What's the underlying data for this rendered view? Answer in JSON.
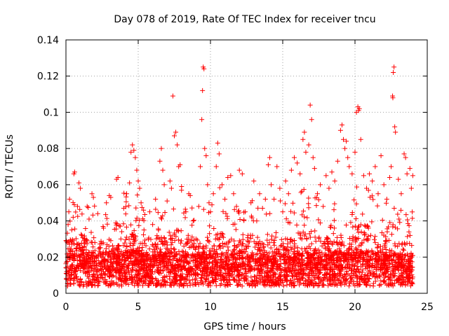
{
  "chart_data": {
    "type": "scatter",
    "title": "Day 078 of 2019, Rate Of TEC Index for receiver tncu",
    "xlabel": "GPS time / hours",
    "ylabel": "ROTI / TECUs",
    "xlim": [
      0,
      25
    ],
    "ylim": [
      0,
      0.14
    ],
    "xticks": [
      0,
      5,
      10,
      15,
      20,
      25
    ],
    "xtick_labels": [
      "0",
      "5",
      "10",
      "15",
      "20",
      "25"
    ],
    "yticks": [
      0,
      0.02,
      0.04,
      0.06,
      0.08,
      0.1,
      0.12,
      0.14
    ],
    "ytick_labels": [
      "0",
      "0.02",
      "0.04",
      "0.06",
      "0.08",
      "0.1",
      "0.12",
      "0.14"
    ],
    "grid": true,
    "marker": "+",
    "color": "#ff0000",
    "series": [
      {
        "name": "ROTI",
        "points": [
          [
            0.05,
            0.012
          ],
          [
            0.1,
            0.028
          ],
          [
            0.15,
            0.038
          ],
          [
            0.2,
            0.045
          ],
          [
            0.25,
            0.052
          ],
          [
            0.3,
            0.02
          ],
          [
            0.35,
            0.01
          ],
          [
            0.4,
            0.035
          ],
          [
            0.45,
            0.015
          ],
          [
            0.5,
            0.042
          ],
          [
            0.55,
            0.066
          ],
          [
            0.6,
            0.067
          ],
          [
            0.7,
            0.025
          ],
          [
            0.8,
            0.048
          ],
          [
            0.9,
            0.061
          ],
          [
            1.0,
            0.058
          ],
          [
            1.1,
            0.032
          ],
          [
            1.2,
            0.018
          ],
          [
            1.3,
            0.03
          ],
          [
            1.4,
            0.022
          ],
          [
            1.6,
            0.041
          ],
          [
            1.8,
            0.055
          ],
          [
            1.9,
            0.053
          ],
          [
            2.0,
            0.028
          ],
          [
            2.2,
            0.044
          ],
          [
            2.4,
            0.015
          ],
          [
            2.6,
            0.036
          ],
          [
            2.8,
            0.05
          ],
          [
            3.0,
            0.054
          ],
          [
            3.1,
            0.053
          ],
          [
            3.3,
            0.024
          ],
          [
            3.5,
            0.063
          ],
          [
            3.6,
            0.064
          ],
          [
            3.8,
            0.03
          ],
          [
            4.0,
            0.047
          ],
          [
            4.2,
            0.055
          ],
          [
            4.4,
            0.061
          ],
          [
            4.5,
            0.078
          ],
          [
            4.6,
            0.082
          ],
          [
            4.7,
            0.079
          ],
          [
            4.8,
            0.075
          ],
          [
            4.9,
            0.068
          ],
          [
            5.0,
            0.062
          ],
          [
            5.1,
            0.058
          ],
          [
            5.2,
            0.05
          ],
          [
            5.4,
            0.035
          ],
          [
            5.6,
            0.02
          ],
          [
            5.8,
            0.045
          ],
          [
            6.0,
            0.038
          ],
          [
            6.2,
            0.052
          ],
          [
            6.5,
            0.073
          ],
          [
            6.6,
            0.08
          ],
          [
            6.7,
            0.068
          ],
          [
            6.8,
            0.06
          ],
          [
            7.0,
            0.051
          ],
          [
            7.2,
            0.062
          ],
          [
            7.3,
            0.058
          ],
          [
            7.4,
            0.109
          ],
          [
            7.5,
            0.087
          ],
          [
            7.6,
            0.089
          ],
          [
            7.7,
            0.082
          ],
          [
            7.8,
            0.07
          ],
          [
            7.9,
            0.071
          ],
          [
            8.0,
            0.059
          ],
          [
            8.3,
            0.045
          ],
          [
            8.5,
            0.055
          ],
          [
            8.6,
            0.054
          ],
          [
            8.8,
            0.04
          ],
          [
            9.0,
            0.03
          ],
          [
            9.2,
            0.025
          ],
          [
            9.3,
            0.07
          ],
          [
            9.4,
            0.096
          ],
          [
            9.45,
            0.112
          ],
          [
            9.5,
            0.125
          ],
          [
            9.55,
            0.124
          ],
          [
            9.6,
            0.08
          ],
          [
            9.7,
            0.076
          ],
          [
            9.8,
            0.06
          ],
          [
            9.9,
            0.05
          ],
          [
            10.0,
            0.045
          ],
          [
            10.2,
            0.055
          ],
          [
            10.4,
            0.07
          ],
          [
            10.5,
            0.083
          ],
          [
            10.6,
            0.077
          ],
          [
            10.8,
            0.06
          ],
          [
            11.0,
            0.052
          ],
          [
            11.2,
            0.064
          ],
          [
            11.4,
            0.065
          ],
          [
            11.6,
            0.055
          ],
          [
            11.8,
            0.048
          ],
          [
            12.0,
            0.068
          ],
          [
            12.2,
            0.066
          ],
          [
            12.4,
            0.045
          ],
          [
            12.6,
            0.032
          ],
          [
            12.8,
            0.05
          ],
          [
            13.0,
            0.062
          ],
          [
            13.2,
            0.04
          ],
          [
            13.4,
            0.055
          ],
          [
            13.6,
            0.047
          ],
          [
            13.8,
            0.052
          ],
          [
            14.0,
            0.071
          ],
          [
            14.1,
            0.075
          ],
          [
            14.2,
            0.06
          ],
          [
            14.4,
            0.052
          ],
          [
            14.6,
            0.07
          ],
          [
            14.8,
            0.058
          ],
          [
            15.0,
            0.045
          ],
          [
            15.2,
            0.062
          ],
          [
            15.4,
            0.055
          ],
          [
            15.6,
            0.068
          ],
          [
            15.8,
            0.075
          ],
          [
            16.0,
            0.072
          ],
          [
            16.2,
            0.066
          ],
          [
            16.4,
            0.085
          ],
          [
            16.5,
            0.089
          ],
          [
            16.6,
            0.078
          ],
          [
            16.8,
            0.082
          ],
          [
            16.9,
            0.104
          ],
          [
            17.0,
            0.096
          ],
          [
            17.1,
            0.075
          ],
          [
            17.2,
            0.069
          ],
          [
            17.4,
            0.055
          ],
          [
            17.6,
            0.06
          ],
          [
            17.8,
            0.048
          ],
          [
            18.0,
            0.065
          ],
          [
            18.2,
            0.058
          ],
          [
            18.4,
            0.067
          ],
          [
            18.6,
            0.062
          ],
          [
            18.8,
            0.073
          ],
          [
            19.0,
            0.09
          ],
          [
            19.1,
            0.093
          ],
          [
            19.2,
            0.085
          ],
          [
            19.3,
            0.08
          ],
          [
            19.4,
            0.084
          ],
          [
            19.5,
            0.075
          ],
          [
            19.6,
            0.07
          ],
          [
            19.8,
            0.066
          ],
          [
            20.0,
            0.078
          ],
          [
            20.1,
            0.1
          ],
          [
            20.2,
            0.103
          ],
          [
            20.25,
            0.101
          ],
          [
            20.3,
            0.102
          ],
          [
            20.4,
            0.085
          ],
          [
            20.6,
            0.065
          ],
          [
            20.8,
            0.058
          ],
          [
            21.0,
            0.066
          ],
          [
            21.2,
            0.062
          ],
          [
            21.4,
            0.07
          ],
          [
            21.6,
            0.055
          ],
          [
            21.8,
            0.076
          ],
          [
            22.0,
            0.06
          ],
          [
            22.2,
            0.052
          ],
          [
            22.4,
            0.064
          ],
          [
            22.5,
            0.07
          ],
          [
            22.6,
            0.109
          ],
          [
            22.62,
            0.108
          ],
          [
            22.65,
            0.122
          ],
          [
            22.7,
            0.125
          ],
          [
            22.75,
            0.092
          ],
          [
            22.8,
            0.089
          ],
          [
            23.0,
            0.063
          ],
          [
            23.2,
            0.055
          ],
          [
            23.4,
            0.077
          ],
          [
            23.5,
            0.075
          ],
          [
            23.6,
            0.066
          ],
          [
            23.8,
            0.069
          ],
          [
            23.9,
            0.058
          ],
          [
            24.0,
            0.065
          ],
          [
            0.3,
            0.005
          ],
          [
            1.0,
            0.008
          ],
          [
            2.0,
            0.006
          ],
          [
            3.0,
            0.009
          ],
          [
            4.0,
            0.007
          ],
          [
            5.0,
            0.005
          ],
          [
            6.0,
            0.008
          ],
          [
            7.0,
            0.006
          ],
          [
            8.0,
            0.009
          ],
          [
            9.0,
            0.005
          ],
          [
            10.0,
            0.006
          ],
          [
            11.0,
            0.008
          ],
          [
            12.0,
            0.007
          ],
          [
            13.0,
            0.005
          ],
          [
            14.0,
            0.009
          ],
          [
            15.0,
            0.006
          ],
          [
            16.0,
            0.008
          ],
          [
            17.0,
            0.007
          ],
          [
            18.0,
            0.009
          ],
          [
            19.0,
            0.006
          ],
          [
            20.0,
            0.01
          ],
          [
            21.0,
            0.008
          ],
          [
            22.0,
            0.007
          ],
          [
            23.0,
            0.006
          ],
          [
            24.0,
            0.009
          ]
        ]
      }
    ],
    "noise_model": {
      "description": "dense ROTI cloud, drawn procedurally around per-hour baseline levels",
      "hourly_baseline": [
        0.012,
        0.014,
        0.013,
        0.012,
        0.014,
        0.012,
        0.013,
        0.013,
        0.012,
        0.013,
        0.013,
        0.012,
        0.013,
        0.012,
        0.013,
        0.012,
        0.013,
        0.012,
        0.013,
        0.013,
        0.014,
        0.013,
        0.012,
        0.011,
        0.011
      ],
      "hourly_spread": [
        0.03,
        0.028,
        0.025,
        0.025,
        0.032,
        0.03,
        0.03,
        0.035,
        0.03,
        0.03,
        0.035,
        0.03,
        0.032,
        0.028,
        0.03,
        0.03,
        0.035,
        0.032,
        0.03,
        0.03,
        0.04,
        0.035,
        0.03,
        0.028,
        0.025
      ],
      "samples": 3500,
      "x_range": [
        0,
        24
      ]
    }
  }
}
